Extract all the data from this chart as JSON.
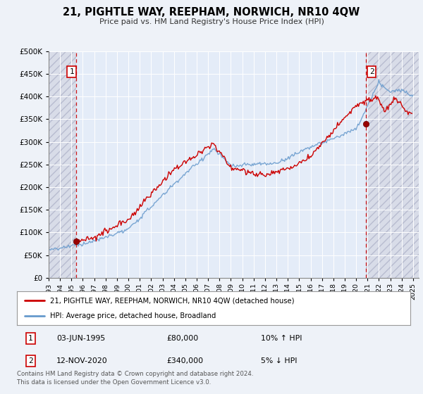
{
  "title": "21, PIGHTLE WAY, REEPHAM, NORWICH, NR10 4QW",
  "subtitle": "Price paid vs. HM Land Registry's House Price Index (HPI)",
  "legend_label1": "21, PIGHTLE WAY, REEPHAM, NORWICH, NR10 4QW (detached house)",
  "legend_label2": "HPI: Average price, detached house, Broadland",
  "annotation1_date": "03-JUN-1995",
  "annotation1_price": "£80,000",
  "annotation1_hpi": "10% ↑ HPI",
  "annotation2_date": "12-NOV-2020",
  "annotation2_price": "£340,000",
  "annotation2_hpi": "5% ↓ HPI",
  "footer": "Contains HM Land Registry data © Crown copyright and database right 2024.\nThis data is licensed under the Open Government Licence v3.0.",
  "price_color": "#cc0000",
  "hpi_color": "#6699cc",
  "hpi_fill_color": "#c8d8f0",
  "marker_color": "#990000",
  "vline_color": "#cc0000",
  "bg_color": "#eef2f8",
  "plot_bg": "#e4ecf8",
  "hatch_bg": "#d8d8e8",
  "grid_color": "#ffffff",
  "ylim": [
    0,
    500000
  ],
  "xlim_start": 1993.0,
  "xlim_end": 2025.5,
  "vline1_x": 1995.42,
  "vline2_x": 2020.87,
  "marker1_y": 80000,
  "marker2_y": 340000,
  "yticks": [
    0,
    50000,
    100000,
    150000,
    200000,
    250000,
    300000,
    350000,
    400000,
    450000,
    500000
  ],
  "xticks": [
    1993,
    1994,
    1995,
    1996,
    1997,
    1998,
    1999,
    2000,
    2001,
    2002,
    2003,
    2004,
    2005,
    2006,
    2007,
    2008,
    2009,
    2010,
    2011,
    2012,
    2013,
    2014,
    2015,
    2016,
    2017,
    2018,
    2019,
    2020,
    2021,
    2022,
    2023,
    2024,
    2025
  ]
}
